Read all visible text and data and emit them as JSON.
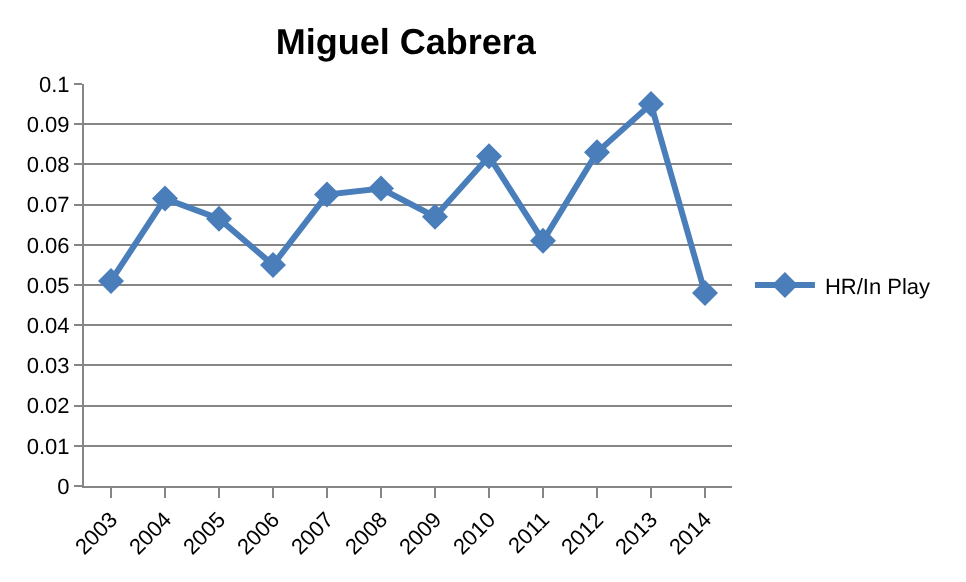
{
  "chart_data": {
    "type": "line",
    "title": "Miguel Cabrera",
    "categories": [
      "2003",
      "2004",
      "2005",
      "2006",
      "2007",
      "2008",
      "2009",
      "2010",
      "2011",
      "2012",
      "2013",
      "2014"
    ],
    "series": [
      {
        "name": "HR/In Play",
        "color": "#4a7ebb",
        "values": [
          0.051,
          0.0715,
          0.0665,
          0.055,
          0.0725,
          0.074,
          0.067,
          0.082,
          0.061,
          0.083,
          0.095,
          0.048
        ]
      }
    ],
    "ylim": [
      0,
      0.1
    ],
    "yticks": [
      0,
      0.01,
      0.02,
      0.03,
      0.04,
      0.05,
      0.06,
      0.07,
      0.08,
      0.09,
      0.1
    ],
    "grid": "y",
    "legend": "right",
    "marker": "diamond",
    "line_style": "solid"
  }
}
